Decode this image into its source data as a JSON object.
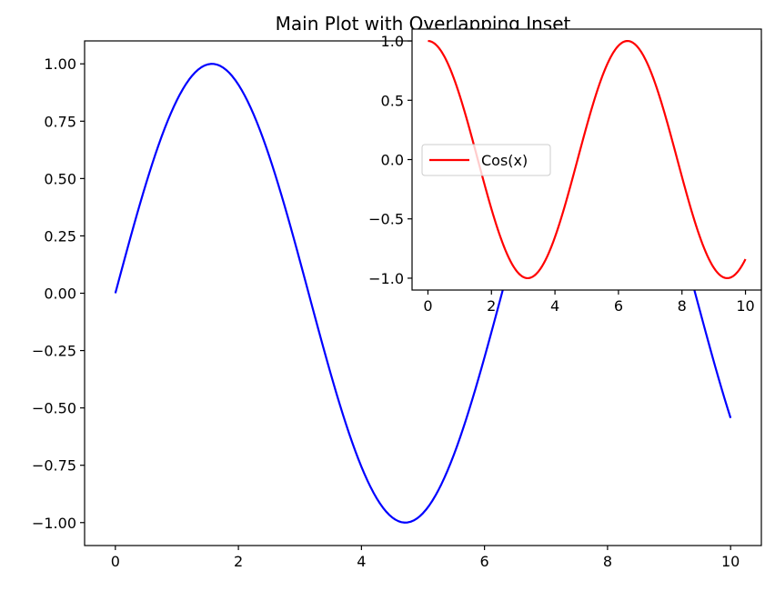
{
  "figure": {
    "title": "Main Plot with Overlapping Inset"
  },
  "chart_data": [
    {
      "type": "line",
      "role": "main",
      "title": "Main Plot with Overlapping Inset",
      "xlabel": "",
      "ylabel": "",
      "xlim": [
        -0.5,
        10.5
      ],
      "ylim": [
        -1.1,
        1.1
      ],
      "grid": false,
      "x_ticks": [
        0,
        2,
        4,
        6,
        8,
        10
      ],
      "y_ticks": [
        -1.0,
        -0.75,
        -0.5,
        -0.25,
        0.0,
        0.25,
        0.5,
        0.75,
        1.0
      ],
      "x_tick_labels": [
        "0",
        "2",
        "4",
        "6",
        "8",
        "10"
      ],
      "y_tick_labels": [
        "−1.00",
        "−0.75",
        "−0.50",
        "−0.25",
        "0.00",
        "0.25",
        "0.50",
        "0.75",
        "1.00"
      ],
      "series": [
        {
          "color": "#0000ff",
          "x": [
            0,
            0.5,
            1,
            1.5,
            1.5708,
            2,
            2.5,
            3,
            3.5,
            4,
            4.5,
            4.7124,
            5,
            5.5,
            6,
            6.5,
            7,
            7.5,
            7.854,
            8,
            8.5,
            9,
            9.5,
            10
          ],
          "y": [
            0,
            0.479,
            0.841,
            0.997,
            1.0,
            0.909,
            0.598,
            0.141,
            -0.351,
            -0.757,
            -0.978,
            -1.0,
            -0.959,
            -0.706,
            -0.279,
            0.215,
            0.657,
            0.938,
            1.0,
            0.989,
            0.798,
            0.412,
            -0.075,
            -0.544
          ]
        }
      ]
    },
    {
      "type": "line",
      "role": "inset",
      "title": "",
      "xlabel": "",
      "ylabel": "",
      "xlim": [
        -0.5,
        10.5
      ],
      "ylim": [
        -1.1,
        1.1
      ],
      "grid": false,
      "legend_position": "center-left",
      "x_ticks": [
        0,
        2,
        4,
        6,
        8,
        10
      ],
      "y_ticks": [
        -1.0,
        -0.5,
        0.0,
        0.5,
        1.0
      ],
      "x_tick_labels": [
        "0",
        "2",
        "4",
        "6",
        "8",
        "10"
      ],
      "y_tick_labels": [
        "−1.0",
        "−0.5",
        "0.0",
        "0.5",
        "1.0"
      ],
      "series": [
        {
          "name": "Cos(x)",
          "color": "#ff0000",
          "x": [
            0,
            0.5,
            1,
            1.5,
            2,
            2.5,
            3,
            3.1416,
            3.5,
            4,
            4.5,
            5,
            5.5,
            6,
            6.2832,
            6.5,
            7,
            7.5,
            8,
            8.5,
            9,
            9.4248,
            9.5,
            10
          ],
          "y": [
            1.0,
            0.878,
            0.54,
            0.071,
            -0.416,
            -0.801,
            -0.99,
            -1.0,
            -0.936,
            -0.654,
            -0.211,
            0.284,
            0.709,
            0.96,
            1.0,
            0.977,
            0.754,
            0.347,
            -0.146,
            -0.602,
            -0.911,
            -1.0,
            -0.997,
            -0.839
          ]
        }
      ]
    }
  ]
}
